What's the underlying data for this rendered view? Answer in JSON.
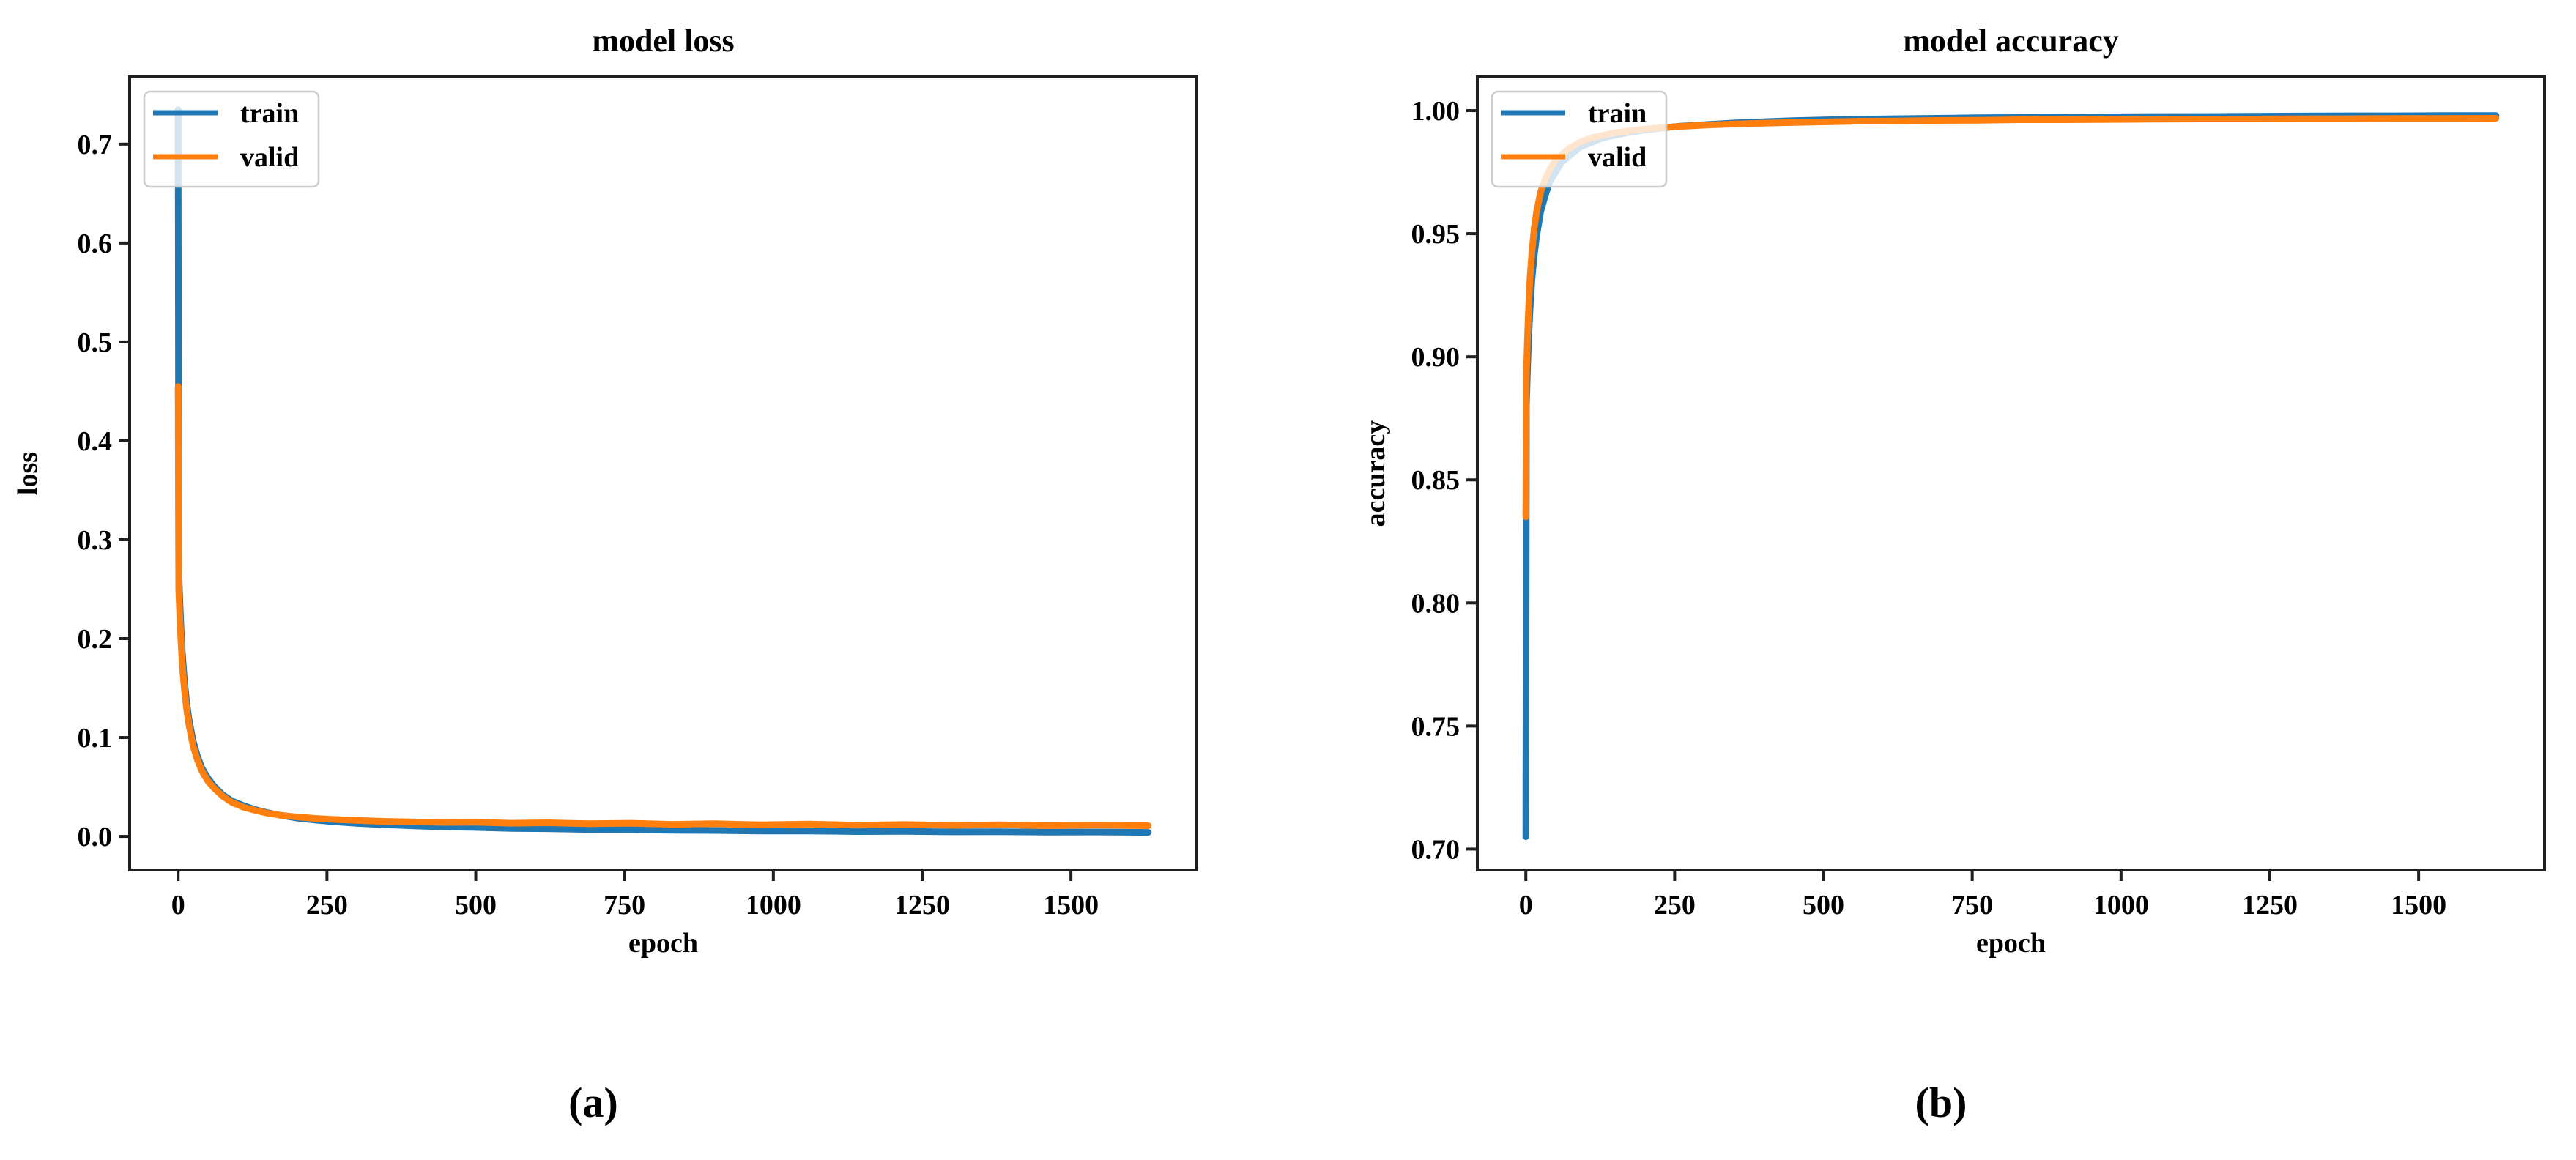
{
  "figure": {
    "background": "#ffffff"
  },
  "captions": {
    "a": "(a)",
    "b": "(b)"
  },
  "style": {
    "axis_color": "#1f1f1f",
    "text_color": "#000000",
    "legend_border": "#cccccc",
    "legend_background": "rgba(255,255,255,0.8)",
    "train_color": "#1f77b4",
    "valid_color": "#ff7f0e"
  },
  "chart_data": [
    {
      "id": "model-loss",
      "type": "line",
      "title": "model loss",
      "xlabel": "epoch",
      "ylabel": "loss",
      "xlim": [
        -81.5,
        1711.5
      ],
      "ylim": [
        -0.034,
        0.768
      ],
      "xticks": [
        0,
        250,
        500,
        750,
        1000,
        1250,
        1500
      ],
      "yticks": [
        0.0,
        0.1,
        0.2,
        0.3,
        0.4,
        0.5,
        0.6,
        0.7
      ],
      "ytick_decimals": 1,
      "grid": false,
      "legend": {
        "position": "upper left",
        "entries": [
          "train",
          "valid"
        ]
      },
      "series": [
        {
          "name": "train",
          "color": "#1f77b4",
          "points": [
            [
              0,
              0.735
            ],
            [
              1,
              0.271
            ],
            [
              2,
              0.252
            ],
            [
              3,
              0.235
            ],
            [
              5,
              0.208
            ],
            [
              7,
              0.186
            ],
            [
              10,
              0.161
            ],
            [
              14,
              0.137
            ],
            [
              18,
              0.119
            ],
            [
              25,
              0.097
            ],
            [
              32,
              0.082
            ],
            [
              40,
              0.069
            ],
            [
              50,
              0.059
            ],
            [
              60,
              0.051
            ],
            [
              75,
              0.042
            ],
            [
              90,
              0.036
            ],
            [
              110,
              0.031
            ],
            [
              130,
              0.027
            ],
            [
              150,
              0.024
            ],
            [
              175,
              0.021
            ],
            [
              200,
              0.0185
            ],
            [
              230,
              0.0165
            ],
            [
              260,
              0.0149
            ],
            [
              300,
              0.0132
            ],
            [
              350,
              0.0117
            ],
            [
              400,
              0.0105
            ],
            [
              450,
              0.0096
            ],
            [
              500,
              0.009
            ],
            [
              560,
              0.008
            ],
            [
              620,
              0.0078
            ],
            [
              690,
              0.007
            ],
            [
              760,
              0.0068
            ],
            [
              830,
              0.0061
            ],
            [
              900,
              0.006
            ],
            [
              980,
              0.0054
            ],
            [
              1060,
              0.0055
            ],
            [
              1140,
              0.0049
            ],
            [
              1220,
              0.005
            ],
            [
              1300,
              0.0046
            ],
            [
              1380,
              0.0047
            ],
            [
              1460,
              0.0043
            ],
            [
              1540,
              0.0044
            ],
            [
              1630,
              0.0041
            ]
          ]
        },
        {
          "name": "valid",
          "color": "#ff7f0e",
          "points": [
            [
              0,
              0.455
            ],
            [
              1,
              0.25
            ],
            [
              2,
              0.233
            ],
            [
              3,
              0.218
            ],
            [
              5,
              0.194
            ],
            [
              7,
              0.174
            ],
            [
              10,
              0.151
            ],
            [
              14,
              0.13
            ],
            [
              18,
              0.113
            ],
            [
              25,
              0.092
            ],
            [
              32,
              0.078
            ],
            [
              40,
              0.066
            ],
            [
              50,
              0.056
            ],
            [
              60,
              0.049
            ],
            [
              75,
              0.0405
            ],
            [
              90,
              0.0345
            ],
            [
              110,
              0.0295
            ],
            [
              130,
              0.0262
            ],
            [
              150,
              0.0235
            ],
            [
              175,
              0.0212
            ],
            [
              200,
              0.0196
            ],
            [
              230,
              0.0182
            ],
            [
              260,
              0.0172
            ],
            [
              300,
              0.0161
            ],
            [
              350,
              0.0152
            ],
            [
              400,
              0.0146
            ],
            [
              450,
              0.0141
            ],
            [
              500,
              0.0143
            ],
            [
              560,
              0.0133
            ],
            [
              620,
              0.0138
            ],
            [
              690,
              0.0128
            ],
            [
              760,
              0.0133
            ],
            [
              830,
              0.0122
            ],
            [
              900,
              0.0128
            ],
            [
              980,
              0.0118
            ],
            [
              1060,
              0.0124
            ],
            [
              1140,
              0.0114
            ],
            [
              1220,
              0.012
            ],
            [
              1300,
              0.0112
            ],
            [
              1380,
              0.0117
            ],
            [
              1460,
              0.0109
            ],
            [
              1540,
              0.0114
            ],
            [
              1630,
              0.0108
            ]
          ]
        }
      ]
    },
    {
      "id": "model-accuracy",
      "type": "line",
      "title": "model accuracy",
      "xlabel": "epoch",
      "ylabel": "accuracy",
      "xlim": [
        -81.5,
        1711.5
      ],
      "ylim": [
        0.6915,
        1.0137
      ],
      "xticks": [
        0,
        250,
        500,
        750,
        1000,
        1250,
        1500
      ],
      "yticks": [
        0.7,
        0.75,
        0.8,
        0.85,
        0.9,
        0.95,
        1.0
      ],
      "ytick_decimals": 2,
      "grid": false,
      "legend": {
        "position": "upper left",
        "entries": [
          "train",
          "valid"
        ]
      },
      "series": [
        {
          "name": "train",
          "color": "#1f77b4",
          "points": [
            [
              0,
              0.705
            ],
            [
              1,
              0.88
            ],
            [
              2,
              0.889
            ],
            [
              3,
              0.897
            ],
            [
              5,
              0.909
            ],
            [
              7,
              0.919
            ],
            [
              10,
              0.931
            ],
            [
              14,
              0.941
            ],
            [
              18,
              0.949
            ],
            [
              25,
              0.959
            ],
            [
              32,
              0.965
            ],
            [
              40,
              0.971
            ],
            [
              50,
              0.975
            ],
            [
              60,
              0.979
            ],
            [
              75,
              0.982
            ],
            [
              90,
              0.985
            ],
            [
              110,
              0.987
            ],
            [
              130,
              0.989
            ],
            [
              150,
              0.99
            ],
            [
              175,
              0.9912
            ],
            [
              200,
              0.9921
            ],
            [
              230,
              0.993
            ],
            [
              260,
              0.9937
            ],
            [
              300,
              0.9943
            ],
            [
              350,
              0.995
            ],
            [
              400,
              0.9955
            ],
            [
              450,
              0.9959
            ],
            [
              500,
              0.9962
            ],
            [
              560,
              0.9965
            ],
            [
              620,
              0.9967
            ],
            [
              690,
              0.9969
            ],
            [
              760,
              0.9971
            ],
            [
              830,
              0.9972
            ],
            [
              900,
              0.9973
            ],
            [
              980,
              0.9975
            ],
            [
              1060,
              0.9976
            ],
            [
              1140,
              0.9976
            ],
            [
              1220,
              0.9977
            ],
            [
              1300,
              0.9978
            ],
            [
              1380,
              0.9979
            ],
            [
              1460,
              0.9979
            ],
            [
              1540,
              0.998
            ],
            [
              1630,
              0.998
            ]
          ]
        },
        {
          "name": "valid",
          "color": "#ff7f0e",
          "points": [
            [
              0,
              0.835
            ],
            [
              1,
              0.893
            ],
            [
              2,
              0.902
            ],
            [
              3,
              0.91
            ],
            [
              5,
              0.922
            ],
            [
              7,
              0.932
            ],
            [
              10,
              0.942
            ],
            [
              14,
              0.952
            ],
            [
              18,
              0.959
            ],
            [
              25,
              0.967
            ],
            [
              32,
              0.972
            ],
            [
              40,
              0.976
            ],
            [
              50,
              0.98
            ],
            [
              60,
              0.982
            ],
            [
              75,
              0.985
            ],
            [
              90,
              0.987
            ],
            [
              110,
              0.989
            ],
            [
              130,
              0.99
            ],
            [
              150,
              0.991
            ],
            [
              175,
              0.9918
            ],
            [
              200,
              0.9925
            ],
            [
              230,
              0.9931
            ],
            [
              260,
              0.9936
            ],
            [
              300,
              0.9941
            ],
            [
              350,
              0.9946
            ],
            [
              400,
              0.9949
            ],
            [
              450,
              0.9952
            ],
            [
              500,
              0.9954
            ],
            [
              560,
              0.9957
            ],
            [
              620,
              0.9958
            ],
            [
              690,
              0.996
            ],
            [
              760,
              0.9961
            ],
            [
              830,
              0.9963
            ],
            [
              900,
              0.9963
            ],
            [
              980,
              0.9964
            ],
            [
              1060,
              0.9965
            ],
            [
              1140,
              0.9966
            ],
            [
              1220,
              0.9966
            ],
            [
              1300,
              0.9967
            ],
            [
              1380,
              0.9967
            ],
            [
              1460,
              0.9968
            ],
            [
              1540,
              0.9968
            ],
            [
              1630,
              0.9969
            ]
          ]
        }
      ]
    }
  ]
}
